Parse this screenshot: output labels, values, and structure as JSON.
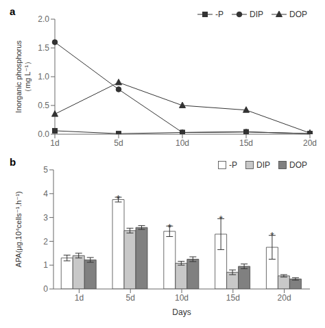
{
  "chart_data": [
    {
      "type": "line",
      "categories": [
        "1d",
        "5d",
        "10d",
        "15d",
        "20d"
      ],
      "series": [
        {
          "name": "-P",
          "color": "#333333",
          "marker": "square",
          "line_style": "solid",
          "values": [
            0.06,
            0.01,
            0.03,
            0.04,
            0.01
          ]
        },
        {
          "name": "DIP",
          "color": "#333333",
          "marker": "circle",
          "line_style": "solid",
          "values": [
            1.6,
            0.78,
            0.03,
            0.04,
            0.01
          ]
        },
        {
          "name": "DOP",
          "color": "#333333",
          "marker": "triangle",
          "line_style": "solid",
          "values": [
            0.35,
            0.9,
            0.5,
            0.42,
            0.02
          ]
        }
      ],
      "ylabel": "Inorganic phosphorus\n（mg L⁻¹）",
      "ylim": [
        0.0,
        2.0
      ],
      "yticks": [
        {
          "value": 0.0,
          "label": "0.0"
        },
        0.5,
        {
          "value": 1.0,
          "label": "1.0"
        },
        1.5,
        {
          "value": 2.0,
          "label": "2.0"
        }
      ],
      "legend": "upper right",
      "grid": false,
      "annotations": [
        {
          "text": "a"
        }
      ]
    },
    {
      "type": "bar",
      "categories": [
        "1d",
        "5d",
        "10d",
        "15d",
        "20d"
      ],
      "series": [
        {
          "name": "-P",
          "color": "#ffffff",
          "values": [
            1.3,
            3.75,
            2.42,
            2.3,
            1.75
          ],
          "error": [
            0.12,
            0.1,
            0.22,
            0.65,
            0.5
          ]
        },
        {
          "name": "DIP",
          "color": "#c8c8c8",
          "values": [
            1.4,
            2.45,
            1.08,
            0.7,
            0.55
          ],
          "error": [
            0.1,
            0.1,
            0.08,
            0.1,
            0.05
          ]
        },
        {
          "name": "DOP",
          "color": "#808080",
          "values": [
            1.22,
            2.58,
            1.25,
            0.95,
            0.42
          ],
          "error": [
            0.1,
            0.08,
            0.1,
            0.1,
            0.05
          ]
        }
      ],
      "xlabel": "Days",
      "ylabel": "APA(μg.10⁴cells⁻¹.h⁻¹)",
      "ylim": [
        0,
        5
      ],
      "yticks": [
        0,
        1,
        2,
        3,
        4,
        5
      ],
      "legend": "upper right",
      "grid": false,
      "annotations": [
        {
          "text": "b"
        },
        {
          "text": "*",
          "x": "5d",
          "series": "-P",
          "y": 3.9
        },
        {
          "text": "*",
          "x": "10d",
          "series": "-P",
          "y": 2.7
        },
        {
          "text": "*",
          "x": "15d",
          "series": "-P",
          "y": 3.05
        },
        {
          "text": "*",
          "x": "20d",
          "series": "-P",
          "y": 2.35
        }
      ]
    }
  ]
}
